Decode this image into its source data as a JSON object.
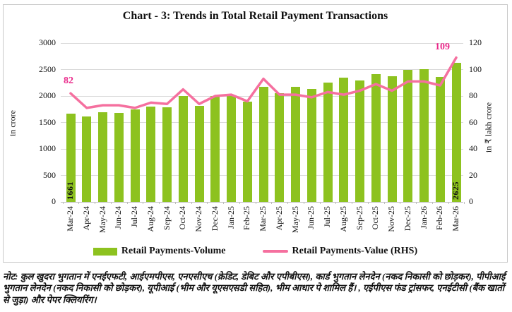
{
  "title": "Chart - 3: Trends in Total Retail Payment Transactions",
  "chart_data": {
    "type": "bar",
    "categories": [
      "Mar-24",
      "Apr-24",
      "May-24",
      "Jun-24",
      "Jul-24",
      "Aug-24",
      "Sep-24",
      "Oct-24",
      "Nov-24",
      "Dec-24",
      "Jan-25",
      "Feb-25",
      "Mar-25",
      "Apr-25",
      "May-25",
      "Jun-25",
      "Jul-25",
      "Aug-25",
      "Sep-25",
      "Oct-25",
      "Nov-25",
      "Dec-25",
      "Jan-26",
      "Feb-26",
      "Mar-26"
    ],
    "series": [
      {
        "name": "Retail Payments-Volume",
        "type": "bar",
        "axis": "left",
        "color": "#8dc21f",
        "values": [
          1661,
          1610,
          1700,
          1680,
          1745,
          1795,
          1790,
          2005,
          1810,
          2000,
          2010,
          1890,
          2170,
          2060,
          2170,
          2135,
          2260,
          2350,
          2290,
          2410,
          2380,
          2500,
          2505,
          2360,
          2625
        ]
      },
      {
        "name": "Retail Payments-Value (RHS)",
        "type": "line",
        "axis": "right",
        "color": "#f5709f",
        "values": [
          82,
          71,
          73,
          73,
          71,
          75,
          74,
          85,
          74,
          80,
          81,
          76,
          93,
          81,
          81,
          79,
          83,
          81,
          84,
          89,
          84,
          91,
          91,
          88,
          109
        ]
      }
    ],
    "left_axis": {
      "label": "in crore",
      "min": 0,
      "max": 3000,
      "step": 500,
      "ticks": [
        "0",
        "500",
        "1000",
        "1500",
        "2000",
        "2500",
        "3000"
      ]
    },
    "right_axis": {
      "label": "in ₹ lakh crore",
      "min": 0,
      "max": 120,
      "step": 20,
      "ticks": [
        "0",
        "20",
        "40",
        "60",
        "80",
        "100",
        "120"
      ]
    },
    "annotations": {
      "first_bar_value": "1661",
      "last_bar_value": "2625",
      "first_line_value": "82",
      "last_line_value": "109",
      "line_label_color": "#ea2a8b"
    },
    "grid": true,
    "legend_position": "bottom"
  },
  "legend": {
    "volume_label": "Retail Payments-Volume",
    "value_label": "Retail Payments-Value (RHS)"
  },
  "note": "नोट: कुल खुदरा भुगतान में एनईएफटी, आईएमपीएस, एनएसीएच (क्रेडिट, डेबिट और एपीबीएस), कार्ड भुगतान लेनदेन (नकद निकासी को छोड़कर), पीपीआई भुगतान लेनदेन (नकद निकासी को छोड़कर), यूपीआई (भीम और यूएसएसडी सहित), भीम आधार पे शामिल हैं। , एईपीएस फंड ट्रांसफर, एनईटीसी (बैंक खातों से जुड़ा) और पेपर क्लियरिंग।",
  "colors": {
    "bar_green": "#8dc21f",
    "line_pink": "#f5709f",
    "annotation_pink": "#ea2a8b",
    "gridline": "#d9d9d9",
    "border": "#c9c9c9",
    "text": "#111111"
  }
}
